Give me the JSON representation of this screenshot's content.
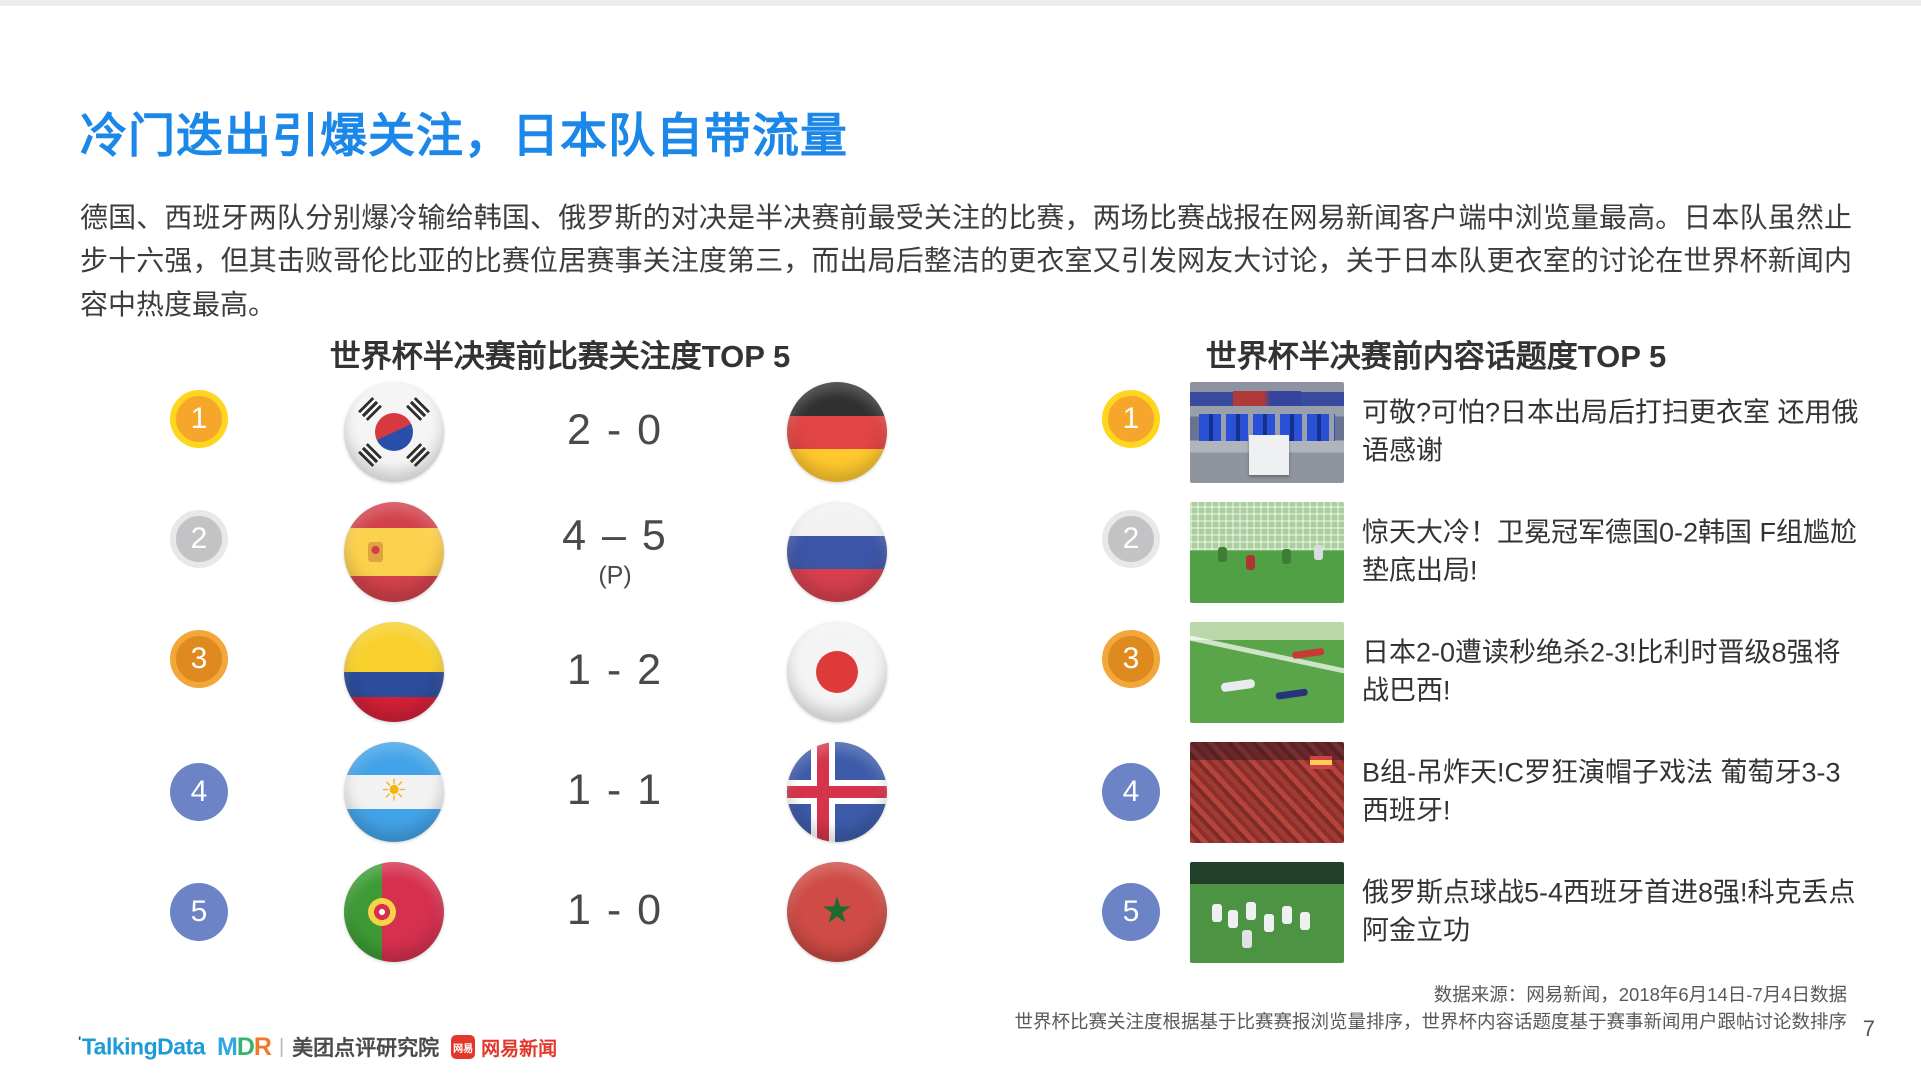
{
  "page": {
    "title": "冷门迭出引爆关注，日本队自带流量",
    "body": "德国、西班牙两队分别爆冷输给韩国、俄罗斯的对决是半决赛前最受关注的比赛，两场比赛战报在网易新闻客户端中浏览量最高。日本队虽然止步十六强，但其击败哥伦比亚的比赛位居赛事关注度第三，而出局后整洁的更衣室又引发网友大讨论，关于日本队更衣室的讨论在世界杯新闻内容中热度最高。",
    "page_number": "7"
  },
  "panels": {
    "left": {
      "heading": "世界杯半决赛前比赛关注度TOP 5",
      "rows": [
        {
          "rank": "1",
          "home_team": "south-korea",
          "score": "2 - 0",
          "note": "",
          "away_team": "germany"
        },
        {
          "rank": "2",
          "home_team": "spain",
          "score": "4 – 5",
          "note": "(P)",
          "away_team": "russia"
        },
        {
          "rank": "3",
          "home_team": "colombia",
          "score": "1 - 2",
          "note": "",
          "away_team": "japan"
        },
        {
          "rank": "4",
          "home_team": "argentina",
          "score": "1 - 1",
          "note": "",
          "away_team": "iceland"
        },
        {
          "rank": "5",
          "home_team": "portugal",
          "score": "1 - 0",
          "note": "",
          "away_team": "morocco"
        }
      ]
    },
    "right": {
      "heading": "世界杯半决赛前内容话题度TOP 5",
      "rows": [
        {
          "rank": "1",
          "photo": "japan-locker-room",
          "headline": "可敬?可怕?日本出局后打扫更衣室 还用俄语感谢"
        },
        {
          "rank": "2",
          "photo": "germany-korea-goal",
          "headline": "惊天大冷！卫冕冠军德国0-2韩国 F组尴尬垫底出局!"
        },
        {
          "rank": "3",
          "photo": "japan-belgium-goal",
          "headline": "日本2-0遭读秒绝杀2-3!比利时晋级8强将战巴西!"
        },
        {
          "rank": "4",
          "photo": "portugal-spain-fans",
          "headline": "B组-吊炸天!C罗狂演帽子戏法 葡萄牙3-3西班牙!"
        },
        {
          "rank": "5",
          "photo": "russia-spain-celebration",
          "headline": "俄罗斯点球战5-4西班牙首进8强!科克丢点阿金立功"
        }
      ]
    }
  },
  "icons": {
    "argentina_sun": "☀",
    "morocco_star": "★"
  },
  "footer": {
    "source_line1": "数据来源：网易新闻，2018年6月14日-7月4日数据",
    "source_line2": "世界杯比赛关注度根据基于比赛赛报浏览量排序，世界杯内容话题度基于赛事新闻用户跟帖讨论数排序",
    "logos": {
      "talkingdata_tick": "'",
      "talkingdata": "TalkingData",
      "mdr": [
        "M",
        "D",
        "R"
      ],
      "separator": "|",
      "meituan": "美团点评研究院",
      "netease_badge": "网易",
      "netease": "网易新闻"
    }
  },
  "colors": {
    "title_blue": "#1b87e8",
    "medal_gold_ring": "#ffd61f",
    "medal_gold": "#f6a62b",
    "medal_silver_ring": "#e8e8e8",
    "medal_silver": "#c3c3c6",
    "medal_bronze_ring": "#f3a73b",
    "medal_bronze": "#de8a1f",
    "ribbon_red": "#f84a1c",
    "rank_blue": "#6c84c6",
    "talkingdata_blue": "#1e9bd7",
    "netease_red": "#e2382c"
  }
}
